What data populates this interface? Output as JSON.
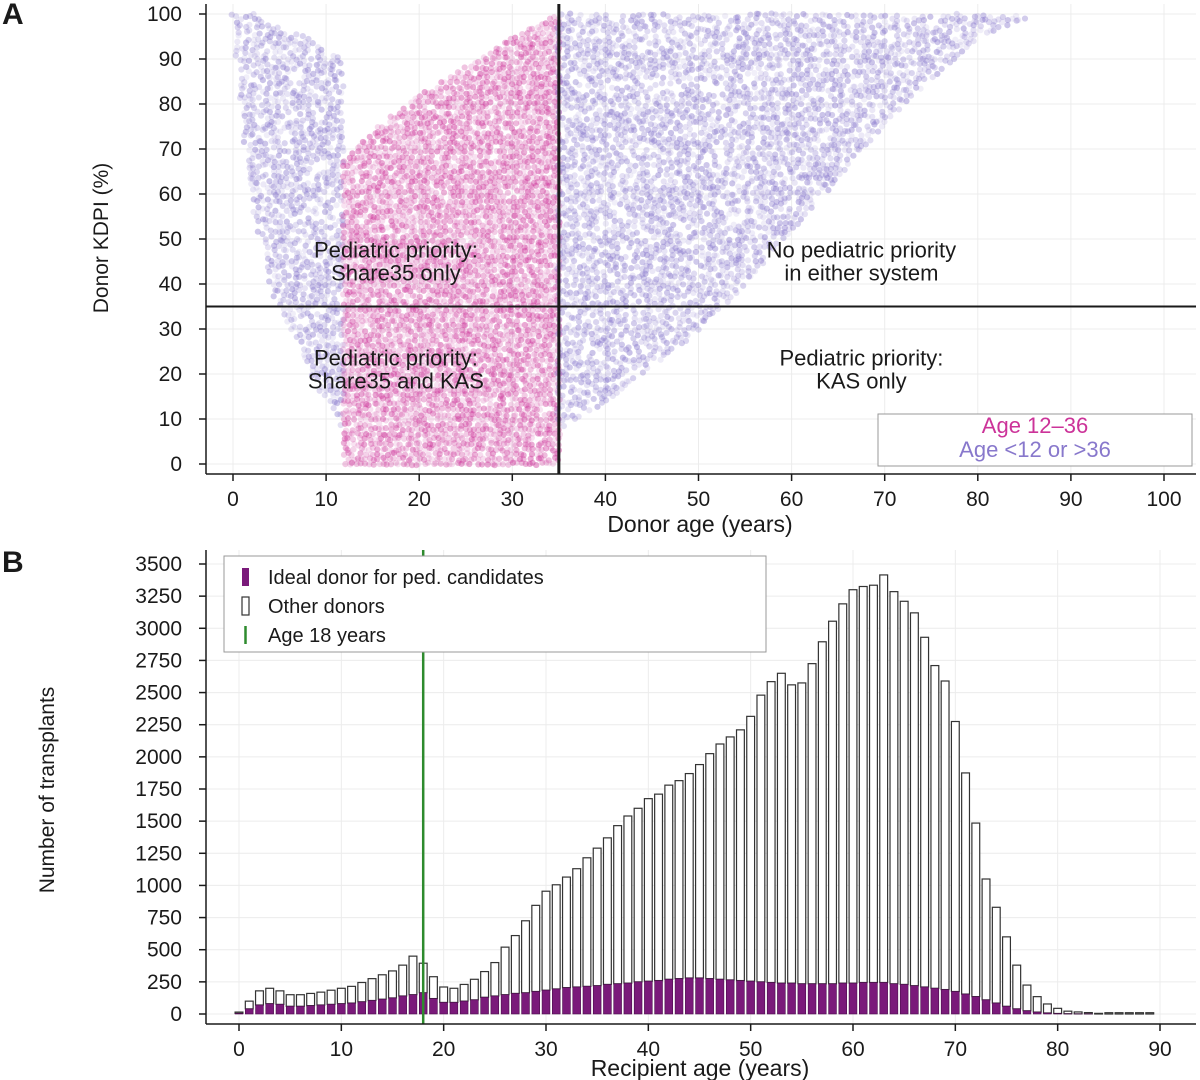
{
  "panels": {
    "a_label": "A",
    "b_label": "B"
  },
  "colors": {
    "age_12_36": "#cc3399",
    "age_other": "#8878cc",
    "ideal": "#7a1a7a",
    "other_bar": "#ffffff",
    "age18_line": "#2e8b2e",
    "axis": "#1a1a1a",
    "grid": "#ececec"
  },
  "chart_data": [
    {
      "type": "scatter",
      "panel": "A",
      "xlabel": "Donor age (years)",
      "ylabel": "Donor KDPI (%)",
      "xlim": [
        0,
        100
      ],
      "ylim": [
        0,
        100
      ],
      "x_ticks": [
        0,
        10,
        20,
        30,
        40,
        50,
        60,
        70,
        80,
        90,
        100
      ],
      "y_ticks": [
        0,
        10,
        20,
        30,
        40,
        50,
        60,
        70,
        80,
        90,
        100
      ],
      "grid": true,
      "reference_lines": {
        "vertical_x": 35,
        "horizontal_y": 35
      },
      "region_labels": [
        {
          "text": [
            "Pediatric priority:",
            "Share35 only"
          ],
          "x": 17.5,
          "y": 45
        },
        {
          "text": [
            "No pediatric priority",
            "in either system"
          ],
          "x": 67.5,
          "y": 45
        },
        {
          "text": [
            "Pediatric priority:",
            "Share35 and KAS"
          ],
          "x": 17.5,
          "y": 21
        },
        {
          "text": [
            "Pediatric priority:",
            "KAS only"
          ],
          "x": 67.5,
          "y": 21
        }
      ],
      "legend": {
        "placement": "bottom-right",
        "entries": [
          {
            "label": "Age 12–36",
            "color": "#cc3399"
          },
          {
            "label": "Age <12 or >36",
            "color": "#8878cc"
          }
        ]
      },
      "density_regions": [
        {
          "group": "Age <12 or >36",
          "age_range": [
            0,
            12
          ],
          "kdpi_bounds": [
            [
              0,
              100,
              100
            ],
            [
              2,
              58,
              100
            ],
            [
              4,
              40,
              98
            ],
            [
              6,
              30,
              96
            ],
            [
              8,
              22,
              95
            ],
            [
              10,
              14,
              92
            ],
            [
              12,
              8,
              90
            ]
          ]
        },
        {
          "group": "Age 12–36",
          "age_range": [
            12,
            35
          ],
          "kdpi_bounds": [
            [
              12,
              0,
              68
            ],
            [
              15,
              0,
              74
            ],
            [
              20,
              0,
              82
            ],
            [
              25,
              0,
              88
            ],
            [
              30,
              0,
              95
            ],
            [
              35,
              0,
              100
            ]
          ]
        },
        {
          "group": "Age <12 or >36",
          "age_range": [
            35,
            85
          ],
          "kdpi_bounds": [
            [
              35,
              8,
              100
            ],
            [
              40,
              14,
              100
            ],
            [
              45,
              22,
              100
            ],
            [
              50,
              30,
              100
            ],
            [
              55,
              40,
              100
            ],
            [
              60,
              52,
              100
            ],
            [
              65,
              64,
              100
            ],
            [
              70,
              76,
              100
            ],
            [
              75,
              86,
              100
            ],
            [
              80,
              95,
              100
            ],
            [
              85,
              99,
              100
            ]
          ]
        }
      ]
    },
    {
      "type": "bar",
      "panel": "B",
      "xlabel": "Recipient age (years)",
      "ylabel": "Number of transplants",
      "xlim": [
        -3,
        91
      ],
      "ylim": [
        0,
        3550
      ],
      "x_ticks": [
        0,
        10,
        20,
        30,
        40,
        50,
        60,
        70,
        80,
        90
      ],
      "y_ticks": [
        0,
        250,
        500,
        750,
        1000,
        1250,
        1500,
        1750,
        2000,
        2250,
        2500,
        2750,
        3000,
        3250,
        3500
      ],
      "grid": true,
      "reference_line": {
        "x": 18,
        "label": "Age 18 years"
      },
      "legend": {
        "placement": "top-left",
        "entries": [
          {
            "label": "Ideal donor for ped. candidates",
            "kind": "ideal"
          },
          {
            "label": "Other donors",
            "kind": "other"
          },
          {
            "label": "Age 18 years",
            "kind": "line"
          }
        ]
      },
      "x": [
        0,
        1,
        2,
        3,
        4,
        5,
        6,
        7,
        8,
        9,
        10,
        11,
        12,
        13,
        14,
        15,
        16,
        17,
        18,
        19,
        20,
        21,
        22,
        23,
        24,
        25,
        26,
        27,
        28,
        29,
        30,
        31,
        32,
        33,
        34,
        35,
        36,
        37,
        38,
        39,
        40,
        41,
        42,
        43,
        44,
        45,
        46,
        47,
        48,
        49,
        50,
        51,
        52,
        53,
        54,
        55,
        56,
        57,
        58,
        59,
        60,
        61,
        62,
        63,
        64,
        65,
        66,
        67,
        68,
        69,
        70,
        71,
        72,
        73,
        74,
        75,
        76,
        77,
        78,
        79,
        80,
        81,
        82,
        83,
        84,
        85,
        86,
        87,
        88,
        89
      ],
      "series": [
        {
          "name": "Ideal donor for ped. candidates",
          "values": [
            5,
            40,
            70,
            80,
            75,
            60,
            60,
            65,
            70,
            75,
            80,
            85,
            95,
            105,
            115,
            125,
            140,
            150,
            165,
            120,
            90,
            90,
            100,
            110,
            130,
            140,
            150,
            160,
            165,
            175,
            185,
            195,
            205,
            210,
            215,
            220,
            230,
            235,
            240,
            250,
            255,
            260,
            270,
            275,
            280,
            280,
            275,
            270,
            265,
            260,
            255,
            250,
            245,
            240,
            240,
            235,
            235,
            235,
            235,
            240,
            240,
            245,
            245,
            245,
            235,
            230,
            220,
            210,
            200,
            190,
            175,
            155,
            135,
            110,
            85,
            60,
            40,
            25,
            15,
            8,
            4,
            2,
            1,
            1,
            0,
            0,
            0,
            0,
            0,
            0
          ]
        },
        {
          "name": "Other donors",
          "values": [
            10,
            60,
            110,
            120,
            105,
            90,
            90,
            95,
            100,
            110,
            120,
            130,
            150,
            170,
            190,
            210,
            240,
            300,
            230,
            170,
            120,
            110,
            130,
            160,
            200,
            260,
            370,
            450,
            560,
            670,
            770,
            810,
            860,
            920,
            1000,
            1070,
            1140,
            1230,
            1300,
            1350,
            1420,
            1450,
            1510,
            1540,
            1590,
            1660,
            1750,
            1830,
            1890,
            1950,
            2060,
            2230,
            2340,
            2410,
            2320,
            2340,
            2490,
            2660,
            2820,
            2950,
            3060,
            3080,
            3090,
            3170,
            3050,
            2980,
            2900,
            2720,
            2510,
            2400,
            2100,
            1720,
            1350,
            940,
            745,
            540,
            340,
            200,
            120,
            70,
            40,
            20,
            15,
            10,
            5,
            10,
            10,
            10,
            10,
            10
          ]
        }
      ]
    }
  ]
}
